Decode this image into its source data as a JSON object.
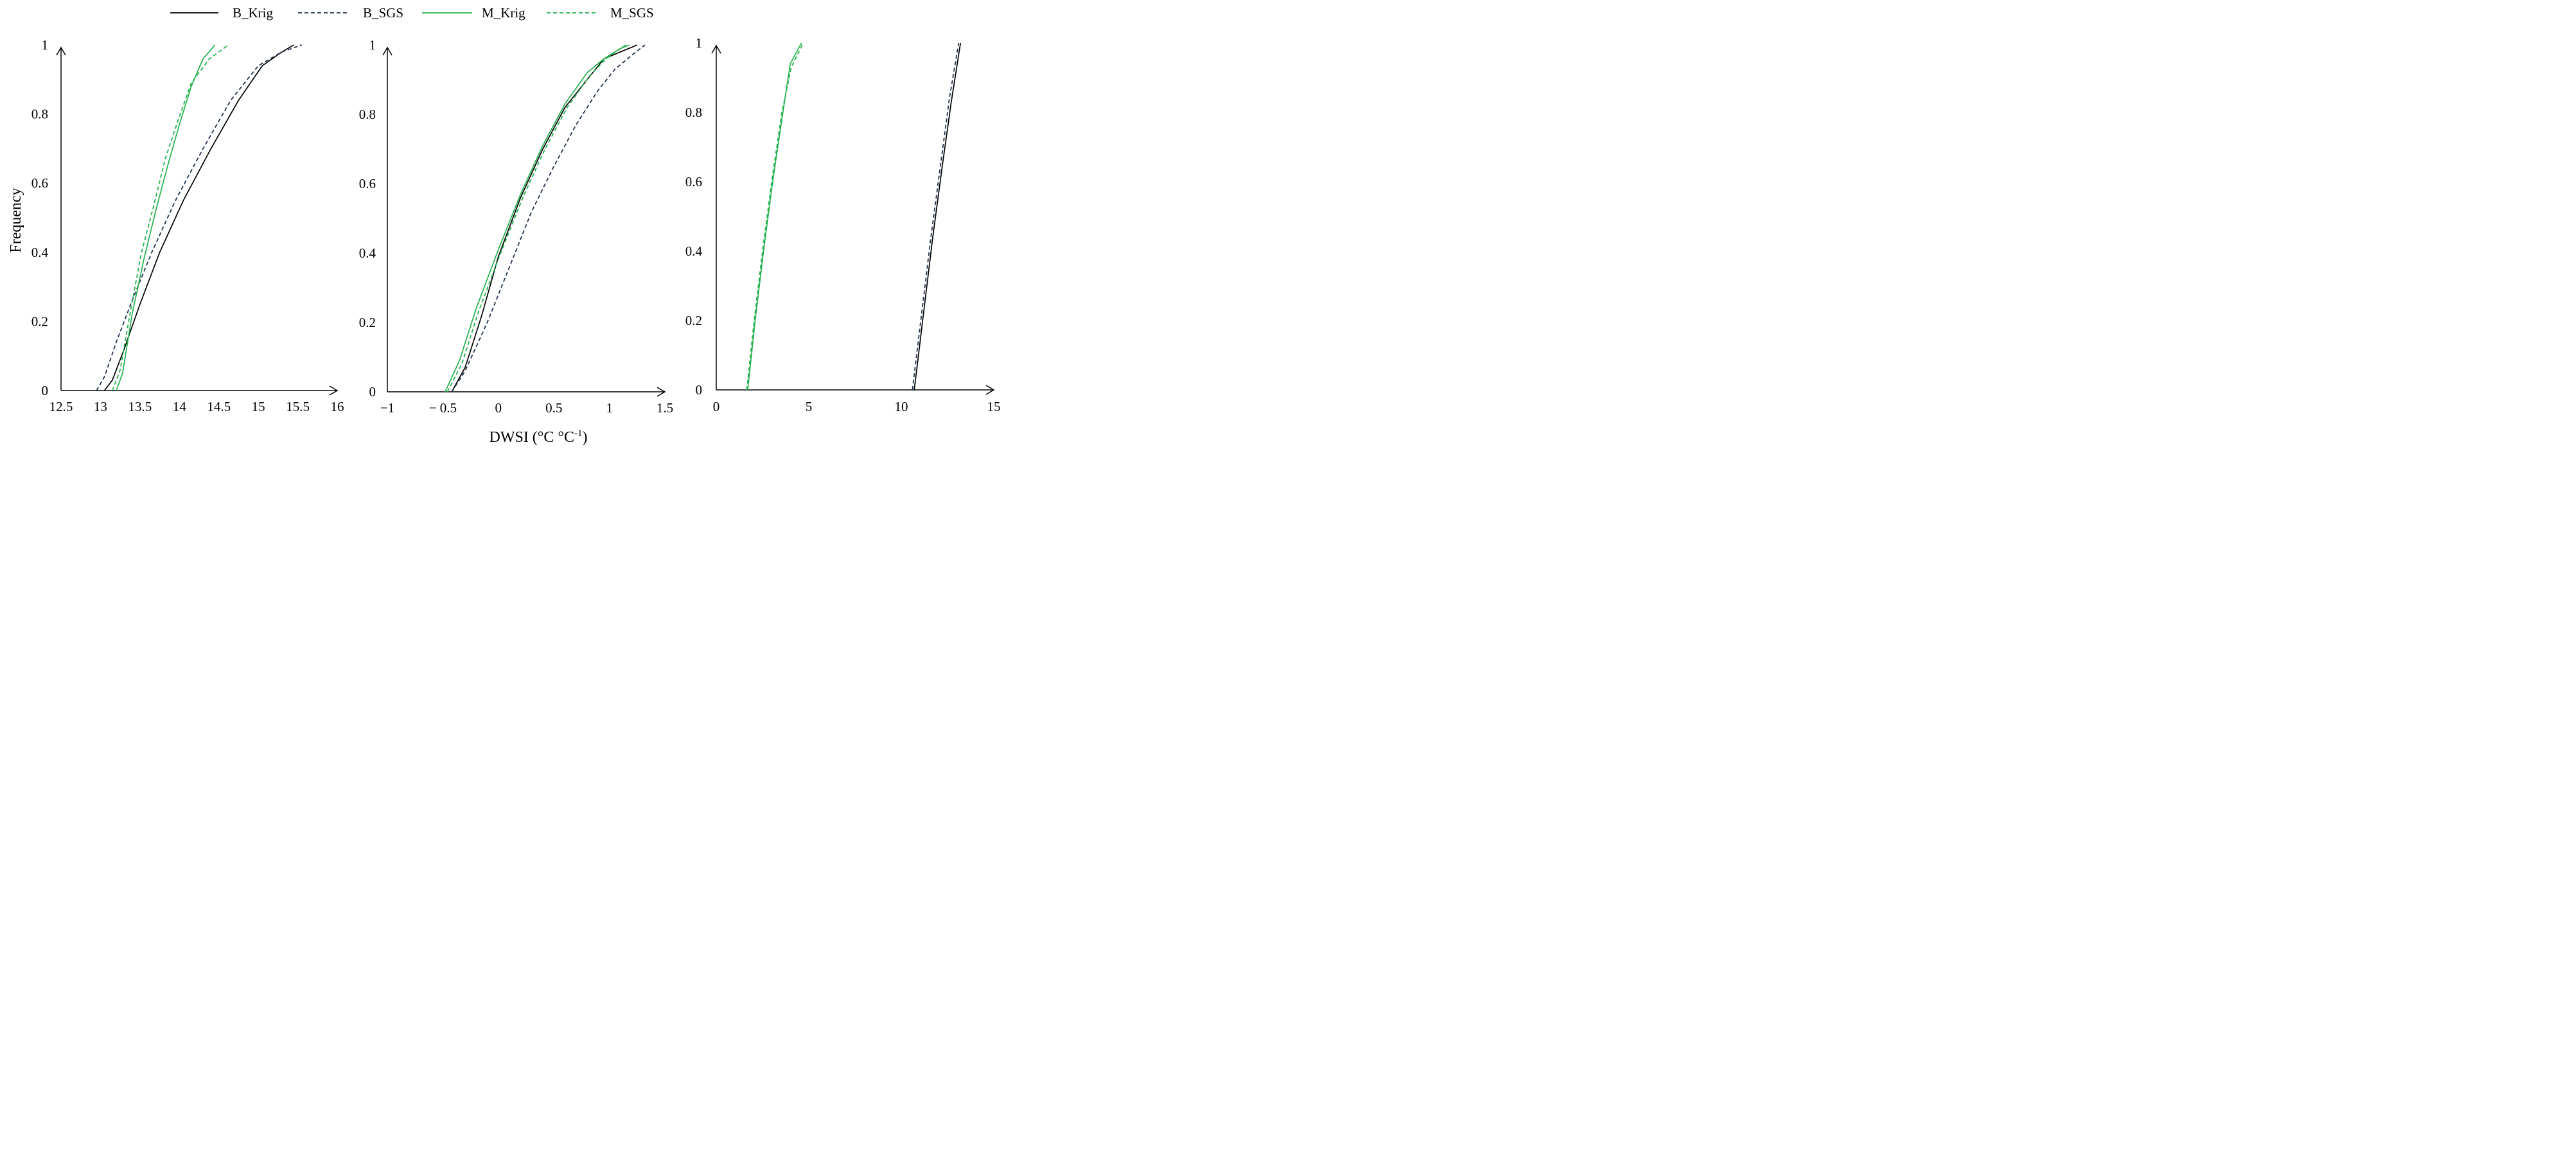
{
  "legend": [
    {
      "id": "b_krig",
      "label": "B_Krig",
      "color": "#000000",
      "dash": "solid"
    },
    {
      "id": "b_sgs",
      "label": "B_SGS",
      "color": "#1f3350",
      "dash": "dashed"
    },
    {
      "id": "m_krig",
      "label": "M_Krig",
      "color": "#22b14c",
      "dash": "solid"
    },
    {
      "id": "m_sgs",
      "label": "M_SGS",
      "color": "#22b14c",
      "dash": "dashed"
    }
  ],
  "labels": {
    "ylabel": "Frequency",
    "xlabel": "DWSI (°C °C",
    "xlabel_sup": "-1",
    "xlabel_close": ")"
  },
  "chart_data": [
    {
      "type": "line",
      "title": "",
      "xlabel": "",
      "ylabel": "Frequency",
      "xlim": [
        12.5,
        16
      ],
      "ylim": [
        0,
        1
      ],
      "xticks": [
        12.5,
        13,
        13.5,
        14,
        14.5,
        15,
        15.5,
        16
      ],
      "xtick_labels": [
        "12.5",
        "13",
        "13.5",
        "14",
        "14.5",
        "15",
        "15.5",
        "16"
      ],
      "yticks": [
        0,
        0.2,
        0.4,
        0.6,
        0.8,
        1
      ],
      "ytick_labels": [
        "0",
        "0.2",
        "0.4",
        "0.6",
        "0.8",
        "1"
      ],
      "series": [
        {
          "name": "B_Krig",
          "style": "b_krig",
          "x": [
            13.05,
            13.15,
            13.3,
            13.5,
            13.75,
            14.05,
            14.4,
            14.75,
            15.05,
            15.3,
            15.45
          ],
          "y": [
            0,
            0.03,
            0.12,
            0.25,
            0.4,
            0.55,
            0.7,
            0.84,
            0.94,
            0.98,
            1
          ]
        },
        {
          "name": "B_SGS",
          "style": "b_sgs",
          "x": [
            12.95,
            13.05,
            13.2,
            13.4,
            13.65,
            13.95,
            14.3,
            14.65,
            15.0,
            15.3,
            15.55
          ],
          "y": [
            0,
            0.04,
            0.14,
            0.26,
            0.4,
            0.55,
            0.7,
            0.84,
            0.94,
            0.98,
            1
          ]
        },
        {
          "name": "M_Krig",
          "style": "m_krig",
          "x": [
            13.2,
            13.28,
            13.4,
            13.55,
            13.7,
            13.85,
            14.0,
            14.15,
            14.3,
            14.45
          ],
          "y": [
            0,
            0.05,
            0.22,
            0.38,
            0.52,
            0.65,
            0.77,
            0.88,
            0.96,
            1
          ]
        },
        {
          "name": "M_SGS",
          "style": "m_sgs",
          "x": [
            13.15,
            13.25,
            13.38,
            13.52,
            13.68,
            13.82,
            13.98,
            14.15,
            14.38,
            14.62
          ],
          "y": [
            0,
            0.06,
            0.23,
            0.4,
            0.54,
            0.67,
            0.78,
            0.89,
            0.96,
            1
          ]
        }
      ]
    },
    {
      "type": "line",
      "title": "",
      "xlabel": "DWSI (°C °C-1)",
      "ylabel": "",
      "xlim": [
        -1,
        1.5
      ],
      "ylim": [
        0,
        1
      ],
      "xticks": [
        -1,
        -0.5,
        0,
        0.5,
        1,
        1.5
      ],
      "xtick_labels": [
        "−1",
        "− 0.5",
        "0",
        "0.5",
        "1",
        "1.5"
      ],
      "yticks": [
        0,
        0.2,
        0.4,
        0.6,
        0.8,
        1
      ],
      "ytick_labels": [
        "0",
        "0.2",
        "0.4",
        "0.6",
        "0.8",
        "1"
      ],
      "series": [
        {
          "name": "B_Krig",
          "style": "b_krig",
          "x": [
            -0.42,
            -0.3,
            -0.15,
            0.0,
            0.2,
            0.4,
            0.6,
            0.8,
            0.95,
            1.1,
            1.25
          ],
          "y": [
            0,
            0.07,
            0.22,
            0.39,
            0.56,
            0.7,
            0.82,
            0.9,
            0.96,
            0.98,
            1
          ]
        },
        {
          "name": "B_SGS",
          "style": "b_sgs",
          "x": [
            -0.42,
            -0.3,
            -0.1,
            0.1,
            0.3,
            0.5,
            0.7,
            0.9,
            1.05,
            1.2,
            1.32
          ],
          "y": [
            0,
            0.06,
            0.2,
            0.36,
            0.52,
            0.65,
            0.77,
            0.87,
            0.93,
            0.97,
            1
          ]
        },
        {
          "name": "M_Krig",
          "style": "m_krig",
          "x": [
            -0.48,
            -0.35,
            -0.2,
            0.0,
            0.2,
            0.4,
            0.6,
            0.8,
            0.95,
            1.1,
            1.18
          ],
          "y": [
            0,
            0.09,
            0.24,
            0.41,
            0.57,
            0.71,
            0.83,
            0.92,
            0.96,
            0.99,
            1
          ]
        },
        {
          "name": "M_SGS",
          "style": "m_sgs",
          "x": [
            -0.46,
            -0.33,
            -0.18,
            0.02,
            0.22,
            0.42,
            0.62,
            0.82,
            0.97,
            1.1,
            1.15
          ],
          "y": [
            0,
            0.08,
            0.23,
            0.4,
            0.56,
            0.7,
            0.82,
            0.91,
            0.96,
            0.99,
            1
          ]
        }
      ]
    },
    {
      "type": "line",
      "title": "",
      "xlabel": "",
      "ylabel": "",
      "xlim": [
        0,
        15
      ],
      "ylim": [
        0,
        1
      ],
      "xticks": [
        0,
        5,
        10,
        15
      ],
      "xtick_labels": [
        "0",
        "5",
        "10",
        "15"
      ],
      "yticks": [
        0,
        0.2,
        0.4,
        0.6,
        0.8,
        1
      ],
      "ytick_labels": [
        "0",
        "0.2",
        "0.4",
        "0.6",
        "0.8",
        "1"
      ],
      "series": [
        {
          "name": "B_Krig",
          "style": "b_krig",
          "x": [
            10.7,
            11.2,
            11.7,
            12.2,
            12.7,
            13.2
          ],
          "y": [
            0,
            0.22,
            0.44,
            0.64,
            0.83,
            1
          ]
        },
        {
          "name": "B_SGS",
          "style": "b_sgs",
          "x": [
            10.6,
            11.1,
            11.6,
            12.1,
            12.6,
            13.1
          ],
          "y": [
            0,
            0.22,
            0.44,
            0.64,
            0.84,
            1
          ]
        },
        {
          "name": "M_Krig",
          "style": "m_krig",
          "x": [
            1.7,
            2.1,
            2.6,
            3.1,
            3.6,
            4.0,
            4.6
          ],
          "y": [
            0,
            0.2,
            0.42,
            0.62,
            0.8,
            0.94,
            1
          ]
        },
        {
          "name": "M_SGS",
          "style": "m_sgs",
          "x": [
            1.65,
            2.05,
            2.55,
            3.05,
            3.55,
            4.05,
            4.7
          ],
          "y": [
            0,
            0.2,
            0.42,
            0.62,
            0.8,
            0.93,
            1
          ]
        }
      ]
    }
  ]
}
